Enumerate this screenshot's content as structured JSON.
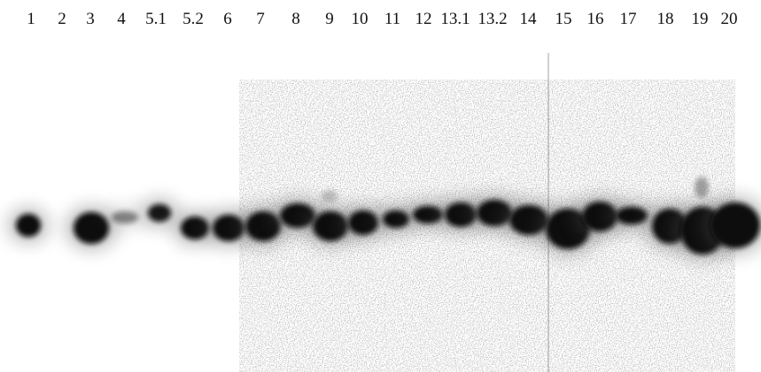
{
  "lanes": [
    "1",
    "2",
    "3",
    "4",
    "5.1",
    "5.2",
    "6",
    "7",
    "8",
    "9",
    "10",
    "11",
    "12",
    "13.1",
    "13.2",
    "14",
    "15",
    "16",
    "17",
    "18",
    "19",
    "20"
  ]
}
